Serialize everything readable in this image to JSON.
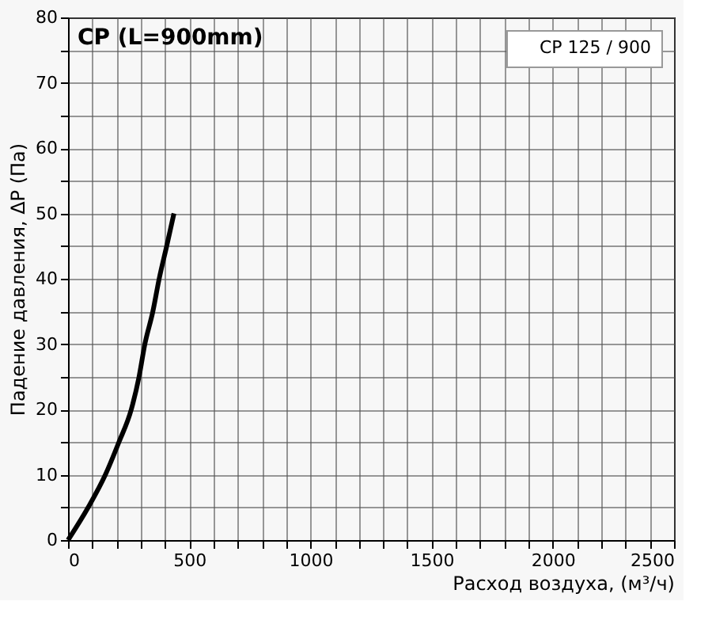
{
  "chart_data": {
    "type": "line",
    "title": "CP (L=900mm)",
    "xlabel": "Расход воздуха, (м³/ч)",
    "ylabel": "Падение давления, ΔP (Па)",
    "xlim": [
      0,
      2500
    ],
    "ylim": [
      0,
      80
    ],
    "xticks": [
      0,
      {
        "value": 100,
        "label": null
      },
      {
        "value": 200,
        "label": null
      },
      {
        "value": 300,
        "label": null
      },
      {
        "value": 400,
        "label": null
      },
      500,
      {
        "value": 600,
        "label": null
      },
      {
        "value": 700,
        "label": null
      },
      {
        "value": 800,
        "label": null
      },
      {
        "value": 900,
        "label": null
      },
      1000,
      {
        "value": 1100,
        "label": null
      },
      {
        "value": 1200,
        "label": null
      },
      {
        "value": 1300,
        "label": null
      },
      {
        "value": 1400,
        "label": null
      },
      1500,
      {
        "value": 1600,
        "label": null
      },
      {
        "value": 1700,
        "label": null
      },
      {
        "value": 1800,
        "label": null
      },
      {
        "value": 1900,
        "label": null
      },
      2000,
      {
        "value": 2100,
        "label": null
      },
      {
        "value": 2200,
        "label": null
      },
      {
        "value": 2300,
        "label": null
      },
      {
        "value": 2400,
        "label": null
      },
      2500
    ],
    "yticks": [
      0,
      {
        "value": 5,
        "label": null
      },
      10,
      {
        "value": 15,
        "label": null
      },
      20,
      {
        "value": 25,
        "label": null
      },
      30,
      {
        "value": 35,
        "label": null
      },
      40,
      {
        "value": 45,
        "label": null
      },
      50,
      {
        "value": 55,
        "label": null
      },
      60,
      {
        "value": 65,
        "label": null
      },
      70,
      {
        "value": 75,
        "label": null
      },
      80
    ],
    "grid": true,
    "legend": "top right",
    "line_style": "solid",
    "marker": "none",
    "series": [
      {
        "name": "CP 125 / 900",
        "color": "#000000",
        "x": [
          0,
          83,
          154,
          210,
          261,
          293,
          317,
          350,
          376,
          407,
          437
        ],
        "values": [
          0,
          5,
          10,
          15,
          20,
          25,
          30,
          35,
          40,
          45,
          50
        ]
      }
    ]
  }
}
